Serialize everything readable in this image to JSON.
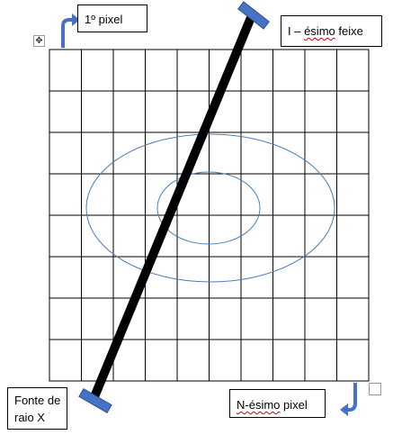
{
  "labels": {
    "first_pixel": "1º pixel",
    "ith_beam_prefix": "I – ",
    "ith_beam_word": "ésimo",
    "ith_beam_suffix": " feixe",
    "xray_source_line1": "Fonte de",
    "xray_source_line2": "raio X",
    "nth_pixel_word": "N-ésimo",
    "nth_pixel_suffix": " pixel"
  },
  "grid": {
    "columns": 10,
    "rows": 8
  },
  "colors": {
    "grid_line": "#000000",
    "beam": "#000000",
    "detector_fill": "#4472c4",
    "detector_stroke": "#2f528f",
    "ellipse_stroke": "#4a7ebb",
    "arrow": "#4472c4",
    "spellcheck_underline": "#d40000"
  },
  "icons": {
    "move_handle": "move-arrows-icon",
    "resize_handle": "resize-handle-icon"
  }
}
